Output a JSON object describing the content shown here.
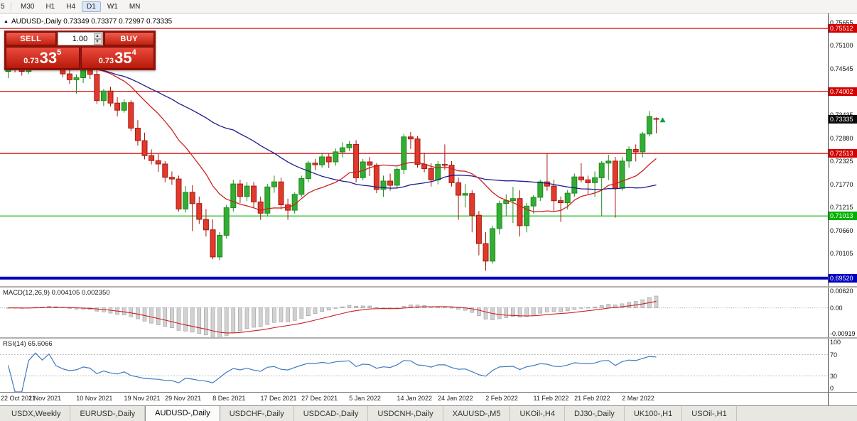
{
  "toolbar": {
    "clipped_button": "5",
    "timeframes": [
      {
        "label": "M30",
        "active": false
      },
      {
        "label": "H1",
        "active": false
      },
      {
        "label": "H4",
        "active": false
      },
      {
        "label": "D1",
        "active": true
      },
      {
        "label": "W1",
        "active": false
      },
      {
        "label": "MN",
        "active": false
      }
    ]
  },
  "chart_header": {
    "collapse_icon": "▲",
    "title": "AUDUSD-,Daily  0.73349 0.73377 0.72997 0.73335"
  },
  "trade_panel": {
    "sell_label": "SELL",
    "buy_label": "BUY",
    "volume": "1.00",
    "spin_up_icon": "▲",
    "spin_down_icon": "▼",
    "sell_price": {
      "prefix": "0.73",
      "big": "33",
      "sup": "5"
    },
    "buy_price": {
      "prefix": "0.73",
      "big": "35",
      "sup": "4"
    }
  },
  "colors": {
    "up": "#1f8a1f",
    "up_fill": "#33ad33",
    "down": "#a8170d",
    "down_fill": "#e03a2c",
    "ma_red": "#cc2020",
    "ma_blue": "#1c1c8f",
    "line_red": "#d40000",
    "line_green": "#00b200",
    "line_blue": "#0000c2",
    "macd_bar": "#d2d2d2",
    "macd_bar_edge": "#9a9a9a",
    "macd_signal": "#cc2020",
    "rsi_line": "#4079c0",
    "badge_current": "#0a0a0a",
    "marker": "#00a13a"
  },
  "chart_data": {
    "type": "candlestick",
    "title": "AUDUSD-,Daily",
    "main": {
      "ylim": [
        0.6933,
        0.7587
      ],
      "y_ticks": [
        "0.75655",
        "0.75100",
        "0.74545",
        "0.73990",
        "0.73435",
        "0.72880",
        "0.72325",
        "0.71770",
        "0.71215",
        "0.70660",
        "0.70105"
      ],
      "hlines": [
        {
          "price": 0.75512,
          "label": "0.75512",
          "color": "red"
        },
        {
          "price": 0.74002,
          "label": "0.74002",
          "color": "red"
        },
        {
          "price": 0.72513,
          "label": "0.72513",
          "color": "red"
        },
        {
          "price": 0.71013,
          "label": "0.71013",
          "color": "green"
        },
        {
          "price": 0.6952,
          "label": "0.69520",
          "color": "blue",
          "width": 4
        }
      ],
      "current_price": {
        "value": 0.73335,
        "label": "0.73335"
      },
      "ma_fast_period": 13,
      "ma_slow_period": 34,
      "marker": {
        "index": 95,
        "price": 0.7326
      },
      "x_labels": [
        "22 Oct 2021",
        "1 Nov 2021",
        "10 Nov 2021",
        "19 Nov 2021",
        "29 Nov 2021",
        "8 Dec 2021",
        "17 Dec 2021",
        "27 Dec 2021",
        "5 Jan 2022",
        "14 Jan 2022",
        "24 Jan 2022",
        "2 Feb 2022",
        "11 Feb 2022",
        "21 Feb 2022",
        "2 Mar 2022"
      ],
      "x_label_indices": [
        0,
        6,
        13,
        20,
        26,
        33,
        40,
        46,
        53,
        60,
        66,
        73,
        80,
        86,
        93
      ],
      "candles": [
        [
          0.7448,
          0.747,
          0.7432,
          0.7464
        ],
        [
          0.7464,
          0.748,
          0.7446,
          0.7456
        ],
        [
          0.7456,
          0.747,
          0.7438,
          0.7448
        ],
        [
          0.7448,
          0.7476,
          0.7442,
          0.7471
        ],
        [
          0.7471,
          0.7496,
          0.746,
          0.7491
        ],
        [
          0.7491,
          0.751,
          0.747,
          0.7478
        ],
        [
          0.7478,
          0.7512,
          0.7466,
          0.7506
        ],
        [
          0.7506,
          0.7518,
          0.7455,
          0.7462
        ],
        [
          0.7462,
          0.7476,
          0.7434,
          0.7442
        ],
        [
          0.7442,
          0.746,
          0.7418,
          0.7428
        ],
        [
          0.7428,
          0.7441,
          0.7395,
          0.7433
        ],
        [
          0.7433,
          0.7456,
          0.742,
          0.7451
        ],
        [
          0.7451,
          0.7466,
          0.743,
          0.7441
        ],
        [
          0.7441,
          0.7451,
          0.737,
          0.7378
        ],
        [
          0.7378,
          0.7406,
          0.7365,
          0.7401
        ],
        [
          0.7401,
          0.7411,
          0.7364,
          0.7372
        ],
        [
          0.7372,
          0.7386,
          0.734,
          0.7355
        ],
        [
          0.7355,
          0.7381,
          0.7349,
          0.7373
        ],
        [
          0.7373,
          0.7379,
          0.7305,
          0.7312
        ],
        [
          0.7312,
          0.7331,
          0.727,
          0.7282
        ],
        [
          0.7282,
          0.7301,
          0.7237,
          0.7246
        ],
        [
          0.7246,
          0.7261,
          0.7225,
          0.7234
        ],
        [
          0.7234,
          0.725,
          0.7207,
          0.7226
        ],
        [
          0.7226,
          0.7233,
          0.7182,
          0.7194
        ],
        [
          0.7194,
          0.7208,
          0.7176,
          0.719
        ],
        [
          0.719,
          0.7198,
          0.7112,
          0.7118
        ],
        [
          0.7118,
          0.7173,
          0.711,
          0.7158
        ],
        [
          0.7158,
          0.7175,
          0.7065,
          0.7131
        ],
        [
          0.7131,
          0.7148,
          0.7082,
          0.7093
        ],
        [
          0.7093,
          0.7118,
          0.7052,
          0.7068
        ],
        [
          0.7068,
          0.7093,
          0.6997,
          0.7003
        ],
        [
          0.7003,
          0.7063,
          0.6995,
          0.7055
        ],
        [
          0.7055,
          0.7128,
          0.7047,
          0.7121
        ],
        [
          0.7121,
          0.7188,
          0.7112,
          0.7178
        ],
        [
          0.7178,
          0.7188,
          0.7132,
          0.7148
        ],
        [
          0.7148,
          0.7183,
          0.7137,
          0.7173
        ],
        [
          0.7173,
          0.7183,
          0.7122,
          0.7135
        ],
        [
          0.7135,
          0.7148,
          0.7092,
          0.7108
        ],
        [
          0.7108,
          0.7178,
          0.7102,
          0.7171
        ],
        [
          0.7171,
          0.7198,
          0.7157,
          0.7183
        ],
        [
          0.7183,
          0.7193,
          0.7117,
          0.7128
        ],
        [
          0.7128,
          0.7143,
          0.7092,
          0.7115
        ],
        [
          0.7115,
          0.7158,
          0.7107,
          0.7153
        ],
        [
          0.7153,
          0.7198,
          0.7147,
          0.7191
        ],
        [
          0.7191,
          0.7233,
          0.7182,
          0.7228
        ],
        [
          0.7228,
          0.7238,
          0.7211,
          0.7224
        ],
        [
          0.7224,
          0.7253,
          0.7217,
          0.7243
        ],
        [
          0.7243,
          0.7251,
          0.7216,
          0.7231
        ],
        [
          0.7231,
          0.7263,
          0.7222,
          0.7255
        ],
        [
          0.7255,
          0.7278,
          0.7242,
          0.7265
        ],
        [
          0.7265,
          0.7281,
          0.7257,
          0.7273
        ],
        [
          0.7273,
          0.7283,
          0.7182,
          0.7193
        ],
        [
          0.7193,
          0.7238,
          0.7187,
          0.7231
        ],
        [
          0.7231,
          0.7243,
          0.7197,
          0.7223
        ],
        [
          0.7223,
          0.7228,
          0.7156,
          0.7165
        ],
        [
          0.7165,
          0.7198,
          0.7147,
          0.7185
        ],
        [
          0.7185,
          0.7203,
          0.7162,
          0.7175
        ],
        [
          0.7175,
          0.7218,
          0.7167,
          0.7213
        ],
        [
          0.7213,
          0.7298,
          0.7202,
          0.7291
        ],
        [
          0.7291,
          0.7303,
          0.7262,
          0.7286
        ],
        [
          0.7286,
          0.7293,
          0.7217,
          0.7225
        ],
        [
          0.7225,
          0.7253,
          0.7206,
          0.7215
        ],
        [
          0.7215,
          0.7228,
          0.7172,
          0.7188
        ],
        [
          0.7188,
          0.7233,
          0.7177,
          0.7225
        ],
        [
          0.7225,
          0.7273,
          0.7212,
          0.7223
        ],
        [
          0.7223,
          0.7233,
          0.7172,
          0.7181
        ],
        [
          0.7181,
          0.7193,
          0.7092,
          0.7151
        ],
        [
          0.7151,
          0.7178,
          0.7122,
          0.7155
        ],
        [
          0.7155,
          0.7163,
          0.7062,
          0.7103
        ],
        [
          0.7103,
          0.7113,
          0.7007,
          0.7035
        ],
        [
          0.7035,
          0.7063,
          0.697,
          0.6993
        ],
        [
          0.6993,
          0.7078,
          0.6987,
          0.7071
        ],
        [
          0.7071,
          0.7138,
          0.7057,
          0.7131
        ],
        [
          0.7131,
          0.7153,
          0.7102,
          0.7138
        ],
        [
          0.7138,
          0.7171,
          0.7084,
          0.7143
        ],
        [
          0.7143,
          0.7163,
          0.7052,
          0.7078
        ],
        [
          0.7078,
          0.7133,
          0.7062,
          0.7125
        ],
        [
          0.7125,
          0.7151,
          0.7107,
          0.7146
        ],
        [
          0.7146,
          0.7188,
          0.7137,
          0.7183
        ],
        [
          0.7183,
          0.7251,
          0.7162,
          0.7173
        ],
        [
          0.7173,
          0.7188,
          0.7112,
          0.7138
        ],
        [
          0.7138,
          0.7148,
          0.7087,
          0.7133
        ],
        [
          0.7133,
          0.7163,
          0.7117,
          0.7156
        ],
        [
          0.7156,
          0.7203,
          0.7147,
          0.7195
        ],
        [
          0.7195,
          0.7228,
          0.7182,
          0.7188
        ],
        [
          0.7188,
          0.7198,
          0.7152,
          0.7181
        ],
        [
          0.7181,
          0.7208,
          0.7147,
          0.7193
        ],
        [
          0.7193,
          0.7233,
          0.7102,
          0.7228
        ],
        [
          0.7228,
          0.7248,
          0.7187,
          0.7233
        ],
        [
          0.7233,
          0.7243,
          0.7097,
          0.7168
        ],
        [
          0.7168,
          0.7243,
          0.7162,
          0.7233
        ],
        [
          0.7233,
          0.7268,
          0.7217,
          0.7261
        ],
        [
          0.7261,
          0.7273,
          0.7232,
          0.7255
        ],
        [
          0.7255,
          0.7303,
          0.7242,
          0.7298
        ],
        [
          0.7298,
          0.7353,
          0.7292,
          0.734
        ],
        [
          0.73349,
          0.73377,
          0.72997,
          0.73335
        ]
      ]
    },
    "macd": {
      "label": "MACD(12,26,9) 0.004105 0.002350",
      "fast": 12,
      "slow": 26,
      "signal": 9,
      "ylim": [
        -0.0097,
        0.0067
      ],
      "y_ticks": [
        {
          "v": 0.0062,
          "label": "0.00620"
        },
        {
          "v": 0,
          "label": "0.00"
        },
        {
          "v": -0.00919,
          "label": "-0.00919"
        }
      ]
    },
    "rsi": {
      "label": "RSI(14) 65.6066",
      "period": 14,
      "ylim": [
        0,
        100
      ],
      "levels": [
        70,
        30
      ],
      "y_ticks": [
        {
          "v": 100,
          "label": "100"
        },
        {
          "v": 70,
          "label": "70"
        },
        {
          "v": 30,
          "label": "30"
        },
        {
          "v": 0,
          "label": "0"
        }
      ]
    }
  },
  "tabs": [
    {
      "label": "USDX,Weekly",
      "active": false
    },
    {
      "label": "EURUSD-,Daily",
      "active": false
    },
    {
      "label": "AUDUSD-,Daily",
      "active": true
    },
    {
      "label": "USDCHF-,Daily",
      "active": false
    },
    {
      "label": "USDCAD-,Daily",
      "active": false
    },
    {
      "label": "USDCNH-,Daily",
      "active": false
    },
    {
      "label": "XAUUSD-,M5",
      "active": false
    },
    {
      "label": "UKOil-,H4",
      "active": false
    },
    {
      "label": "DJ30-,Daily",
      "active": false
    },
    {
      "label": "UK100-,H1",
      "active": false
    },
    {
      "label": "USOil-,H1",
      "active": false
    }
  ]
}
